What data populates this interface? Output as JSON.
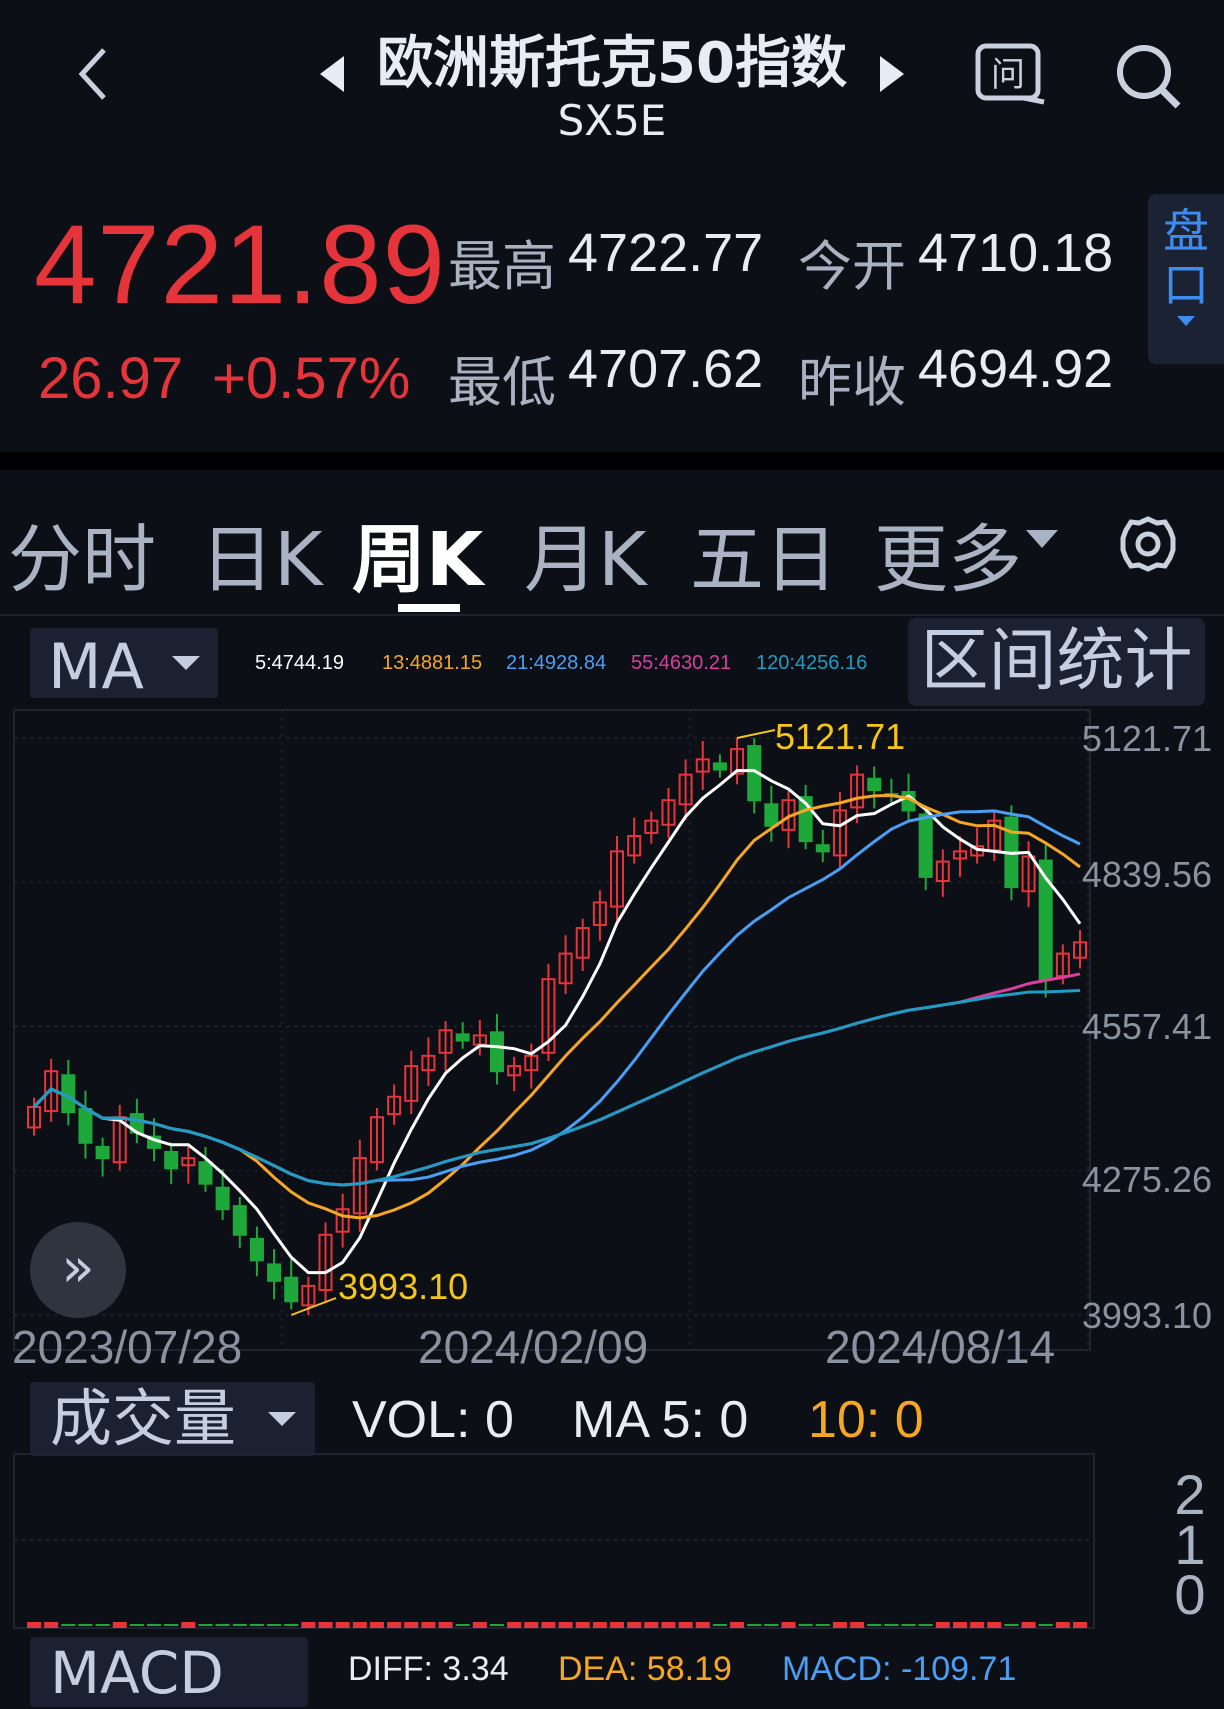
{
  "header": {
    "title": "欧洲斯托克50指数",
    "code": "SX5E",
    "back_icon": "chevron-left-icon",
    "ask_icon": "question-chat-icon",
    "search_icon": "search-icon"
  },
  "quote": {
    "price": "4721.89",
    "change": "26.97",
    "change_pct": "+0.57%",
    "high_label": "最高",
    "high": "4722.77",
    "open_label": "今开",
    "open": "4710.18",
    "low_label": "最低",
    "low": "4707.62",
    "prev_close_label": "昨收",
    "prev_close": "4694.92",
    "panel_label_1": "盘",
    "panel_label_2": "口",
    "up_color": "#e5353b",
    "down_color": "#1fa83a"
  },
  "tabs": [
    {
      "label": "分时"
    },
    {
      "label": "日K"
    },
    {
      "label": "周K",
      "active": true
    },
    {
      "label": "月K"
    },
    {
      "label": "五日"
    },
    {
      "label": "更多"
    }
  ],
  "indicator": {
    "name": "MA",
    "ma": [
      {
        "label": "5:4744.19",
        "color": "#ffffff"
      },
      {
        "label": "13:4881.15",
        "color": "#f5a623"
      },
      {
        "label": "21:4928.84",
        "color": "#4a9ff5"
      },
      {
        "label": "55:4630.21",
        "color": "#d63fa0"
      },
      {
        "label": "120:4256.16",
        "color": "#1e9cc4"
      }
    ],
    "range_button": "区间统计"
  },
  "chart_data": {
    "type": "candlestick",
    "period": "weekly",
    "y_ticks": [
      "5121.71",
      "4839.56",
      "4557.41",
      "4275.26",
      "3993.10"
    ],
    "ylim": [
      3993.1,
      5121.71
    ],
    "x_ticks": [
      "2023/07/28",
      "2024/02/09",
      "2024/08/14"
    ],
    "max_label": "5121.71",
    "min_label": "3993.10",
    "closes": [
      4400,
      4470,
      4390,
      4330,
      4300,
      4380,
      4350,
      4320,
      4280,
      4300,
      4250,
      4200,
      4150,
      4100,
      4060,
      4020,
      4050,
      4150,
      4200,
      4300,
      4380,
      4420,
      4480,
      4500,
      4550,
      4530,
      4540,
      4470,
      4480,
      4500,
      4650,
      4700,
      4750,
      4800,
      4900,
      4930,
      4960,
      5000,
      5050,
      5080,
      5060,
      5100,
      5000,
      4950,
      5000,
      4920,
      4900,
      4980,
      5050,
      5020,
      5010,
      4980,
      4850,
      4880,
      4900,
      4910,
      4960,
      4830,
      4890,
      4650,
      4700,
      4722
    ]
  },
  "volume": {
    "name": "成交量",
    "vol": "VOL:  0",
    "ma5": "MA 5: 0",
    "ma10": "10: 0",
    "y_ticks": [
      "2",
      "1",
      "0"
    ]
  },
  "macd": {
    "name": "MACD",
    "diff": "DIFF: 3.34",
    "dea": "DEA: 58.19",
    "macd": "MACD: -109.71"
  }
}
